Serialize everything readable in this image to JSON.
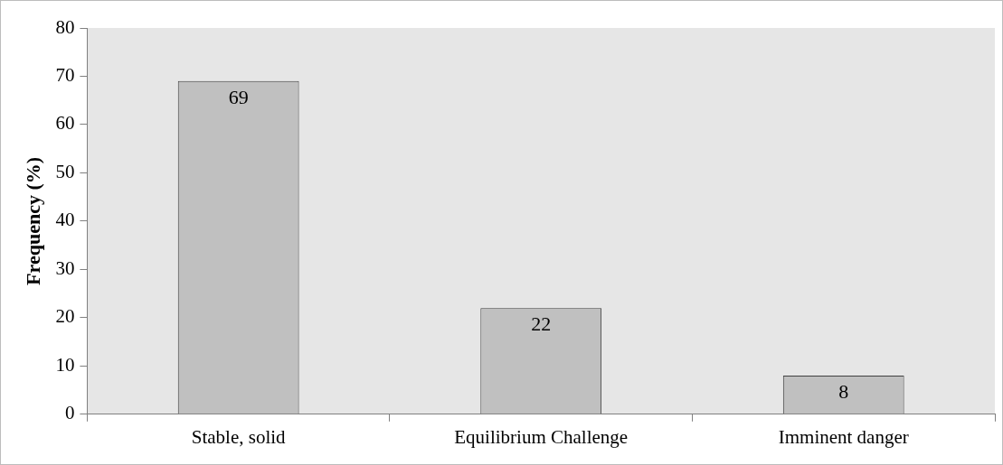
{
  "chart_data": {
    "type": "bar",
    "ylabel": "Frequency (%)",
    "categories": [
      "Stable, solid",
      "Equilibrium Challenge",
      "Imminent danger"
    ],
    "values": [
      69,
      22,
      8
    ],
    "color": "#c0c0c0",
    "data_labels": true,
    "ylim": [
      0,
      80
    ],
    "yticks": [
      0,
      10,
      20,
      30,
      40,
      50,
      60,
      70,
      80
    ],
    "grid": false,
    "legend": false
  }
}
